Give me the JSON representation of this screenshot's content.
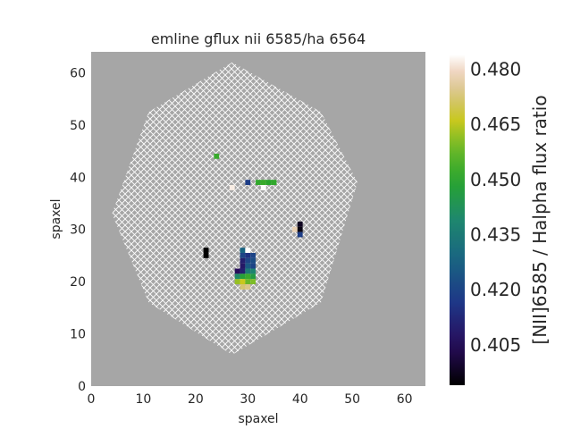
{
  "chart_data": {
    "type": "heatmap",
    "title": "emline gflux nii 6585/ha 6564",
    "xlabel": "spaxel",
    "ylabel": "spaxel",
    "xlim": [
      0,
      64
    ],
    "ylim": [
      0,
      64
    ],
    "x_ticks": [
      "0",
      "10",
      "20",
      "30",
      "40",
      "50",
      "60"
    ],
    "y_ticks": [
      "0",
      "10",
      "20",
      "30",
      "40",
      "50",
      "60"
    ],
    "background_color": "#a6a6a6",
    "hatch_color": "#ffffff",
    "grid": false,
    "colorbar": {
      "label": "[NII]6585 / Halpha flux ratio",
      "range": [
        0.394,
        0.484
      ],
      "ticks": [
        "0.405",
        "0.420",
        "0.435",
        "0.450",
        "0.465",
        "0.480"
      ],
      "colormap": "gist_earth"
    },
    "hexagon_vertices": [
      [
        27,
        62
      ],
      [
        44,
        52.5
      ],
      [
        51,
        39
      ],
      [
        44,
        16
      ],
      [
        27,
        6
      ],
      [
        11,
        16
      ],
      [
        4,
        33
      ],
      [
        11,
        52.5
      ]
    ],
    "cells": [
      {
        "x": 24,
        "y": 44,
        "v": 0.452
      },
      {
        "x": 30,
        "y": 39,
        "v": 0.418
      },
      {
        "x": 32,
        "y": 39,
        "v": 0.451
      },
      {
        "x": 33,
        "y": 39,
        "v": 0.452
      },
      {
        "x": 34,
        "y": 39,
        "v": 0.45
      },
      {
        "x": 35,
        "y": 39,
        "v": 0.451
      },
      {
        "x": 27,
        "y": 38,
        "v": 0.482
      },
      {
        "x": 33,
        "y": 38,
        "v": 0.484
      },
      {
        "x": 40,
        "y": 31,
        "v": 0.398
      },
      {
        "x": 39,
        "y": 30,
        "v": 0.478
      },
      {
        "x": 40,
        "y": 30,
        "v": 0.396
      },
      {
        "x": 40,
        "y": 29,
        "v": 0.418
      },
      {
        "x": 22,
        "y": 26,
        "v": 0.394
      },
      {
        "x": 22,
        "y": 25,
        "v": 0.394
      },
      {
        "x": 29,
        "y": 26,
        "v": 0.428
      },
      {
        "x": 30,
        "y": 26,
        "v": 0.484
      },
      {
        "x": 29,
        "y": 25,
        "v": 0.42
      },
      {
        "x": 30,
        "y": 25,
        "v": 0.415
      },
      {
        "x": 31,
        "y": 25,
        "v": 0.42
      },
      {
        "x": 29,
        "y": 24,
        "v": 0.41
      },
      {
        "x": 30,
        "y": 24,
        "v": 0.42
      },
      {
        "x": 31,
        "y": 24,
        "v": 0.422
      },
      {
        "x": 29,
        "y": 23,
        "v": 0.408
      },
      {
        "x": 30,
        "y": 23,
        "v": 0.425
      },
      {
        "x": 31,
        "y": 23,
        "v": 0.42
      },
      {
        "x": 28,
        "y": 22,
        "v": 0.405
      },
      {
        "x": 29,
        "y": 22,
        "v": 0.41
      },
      {
        "x": 30,
        "y": 22,
        "v": 0.435
      },
      {
        "x": 31,
        "y": 22,
        "v": 0.438
      },
      {
        "x": 28,
        "y": 21,
        "v": 0.44
      },
      {
        "x": 29,
        "y": 21,
        "v": 0.448
      },
      {
        "x": 30,
        "y": 21,
        "v": 0.452
      },
      {
        "x": 31,
        "y": 21,
        "v": 0.446
      },
      {
        "x": 28,
        "y": 20,
        "v": 0.462
      },
      {
        "x": 29,
        "y": 20,
        "v": 0.466
      },
      {
        "x": 30,
        "y": 20,
        "v": 0.458
      },
      {
        "x": 31,
        "y": 20,
        "v": 0.46
      },
      {
        "x": 29,
        "y": 19,
        "v": 0.472
      },
      {
        "x": 30,
        "y": 19,
        "v": 0.474
      }
    ]
  }
}
